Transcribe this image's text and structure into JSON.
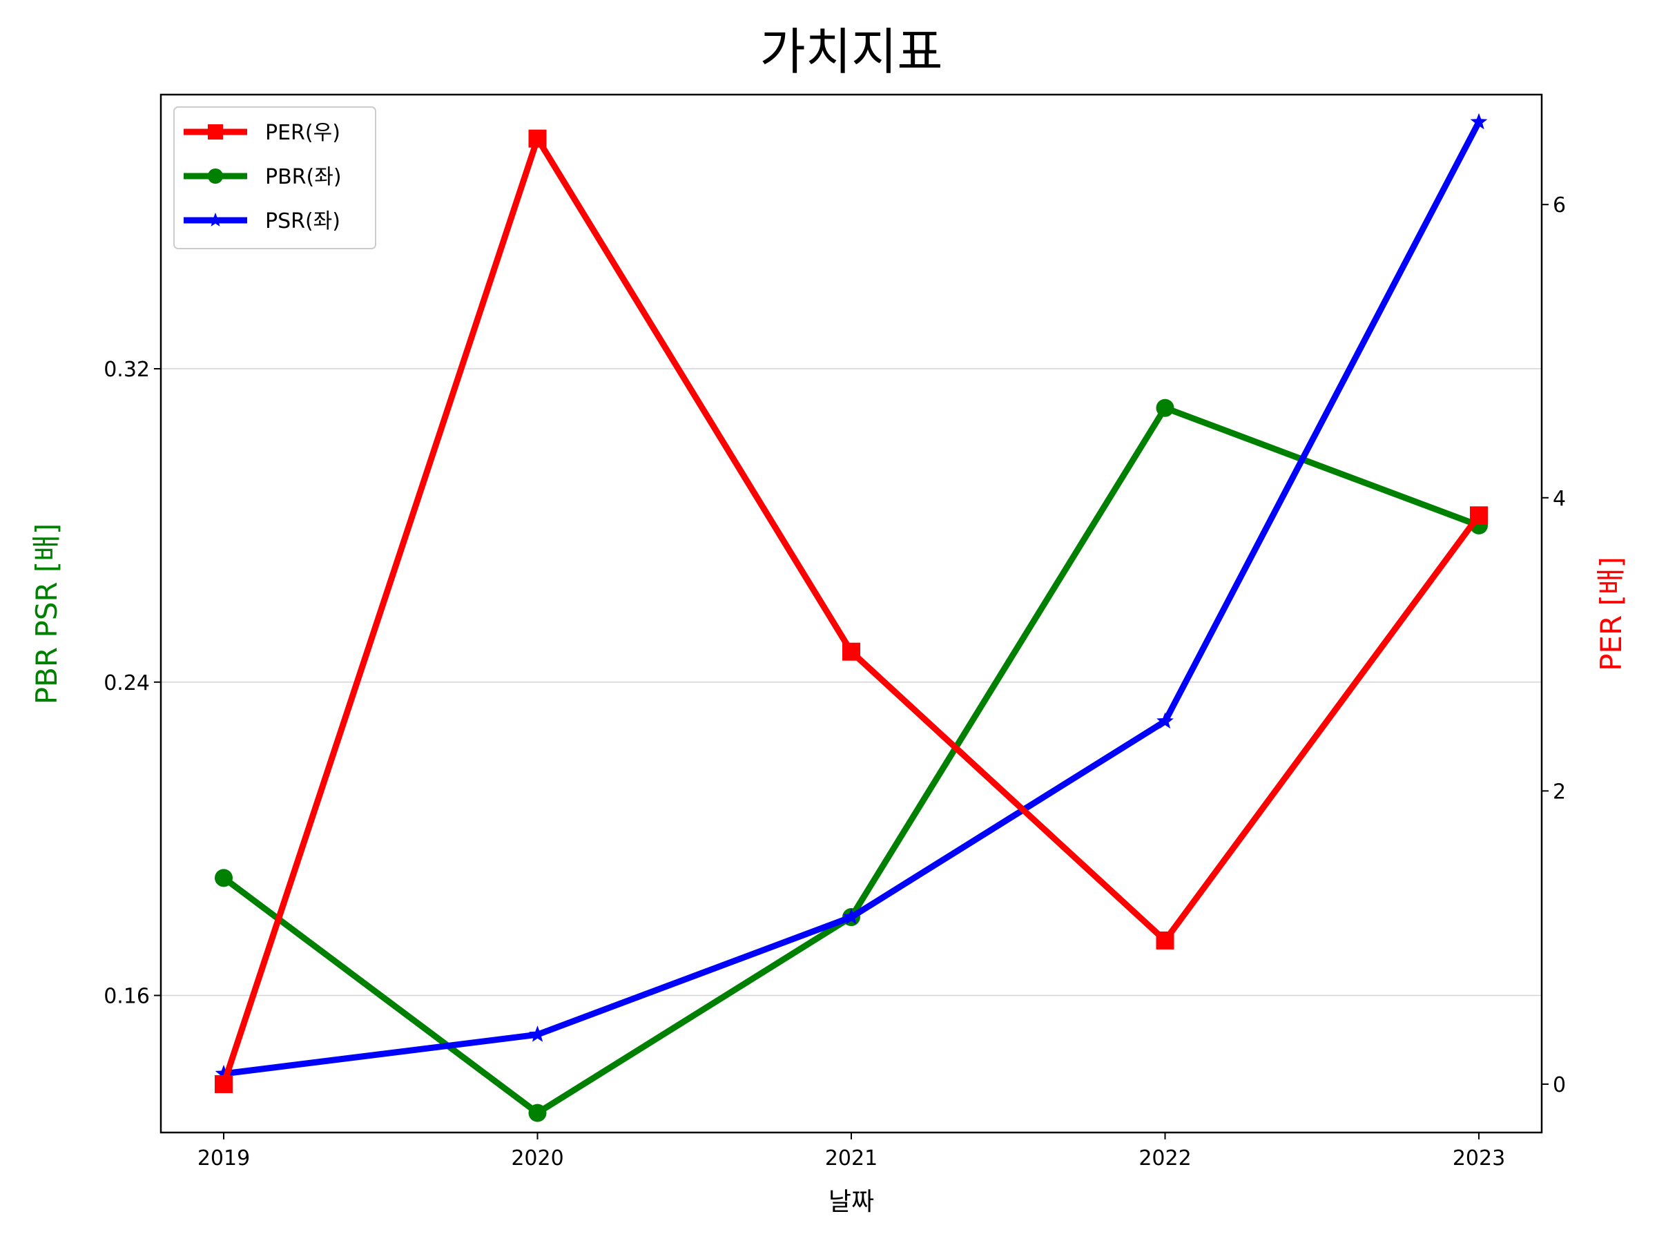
{
  "chart_data": {
    "type": "line",
    "title": "가치지표",
    "xlabel": "날짜",
    "ylabel_left": "PBR PSR [배]",
    "ylabel_right": "PER [배]",
    "categories": [
      "2019",
      "2020",
      "2021",
      "2022",
      "2023"
    ],
    "left_axis": {
      "ylim": [
        0.125,
        0.39
      ],
      "ticks": [
        0.16,
        0.24,
        0.32
      ],
      "tick_labels": [
        "0.16",
        "0.24",
        "0.32"
      ],
      "grid": true
    },
    "right_axis": {
      "ylim": [
        -0.33,
        6.75
      ],
      "ticks": [
        0,
        2,
        4,
        6
      ],
      "tick_labels": [
        "0",
        "2",
        "4",
        "6"
      ]
    },
    "series": [
      {
        "name": "PER(우)",
        "axis": "right",
        "color": "#ff0000",
        "marker": "square",
        "values": [
          0.0,
          6.45,
          2.95,
          0.98,
          3.88
        ]
      },
      {
        "name": "PBR(좌)",
        "axis": "left",
        "color": "#008000",
        "marker": "circle",
        "values": [
          0.19,
          0.13,
          0.18,
          0.31,
          0.28
        ]
      },
      {
        "name": "PSR(좌)",
        "axis": "left",
        "color": "#0000ff",
        "marker": "star",
        "values": [
          0.14,
          0.15,
          0.18,
          0.23,
          0.383
        ]
      }
    ],
    "legend": {
      "position": "top-left",
      "entries": [
        "PER(우)",
        "PBR(좌)",
        "PSR(좌)"
      ]
    },
    "colors": {
      "left_label": "#008000",
      "right_label": "#ff0000"
    }
  }
}
